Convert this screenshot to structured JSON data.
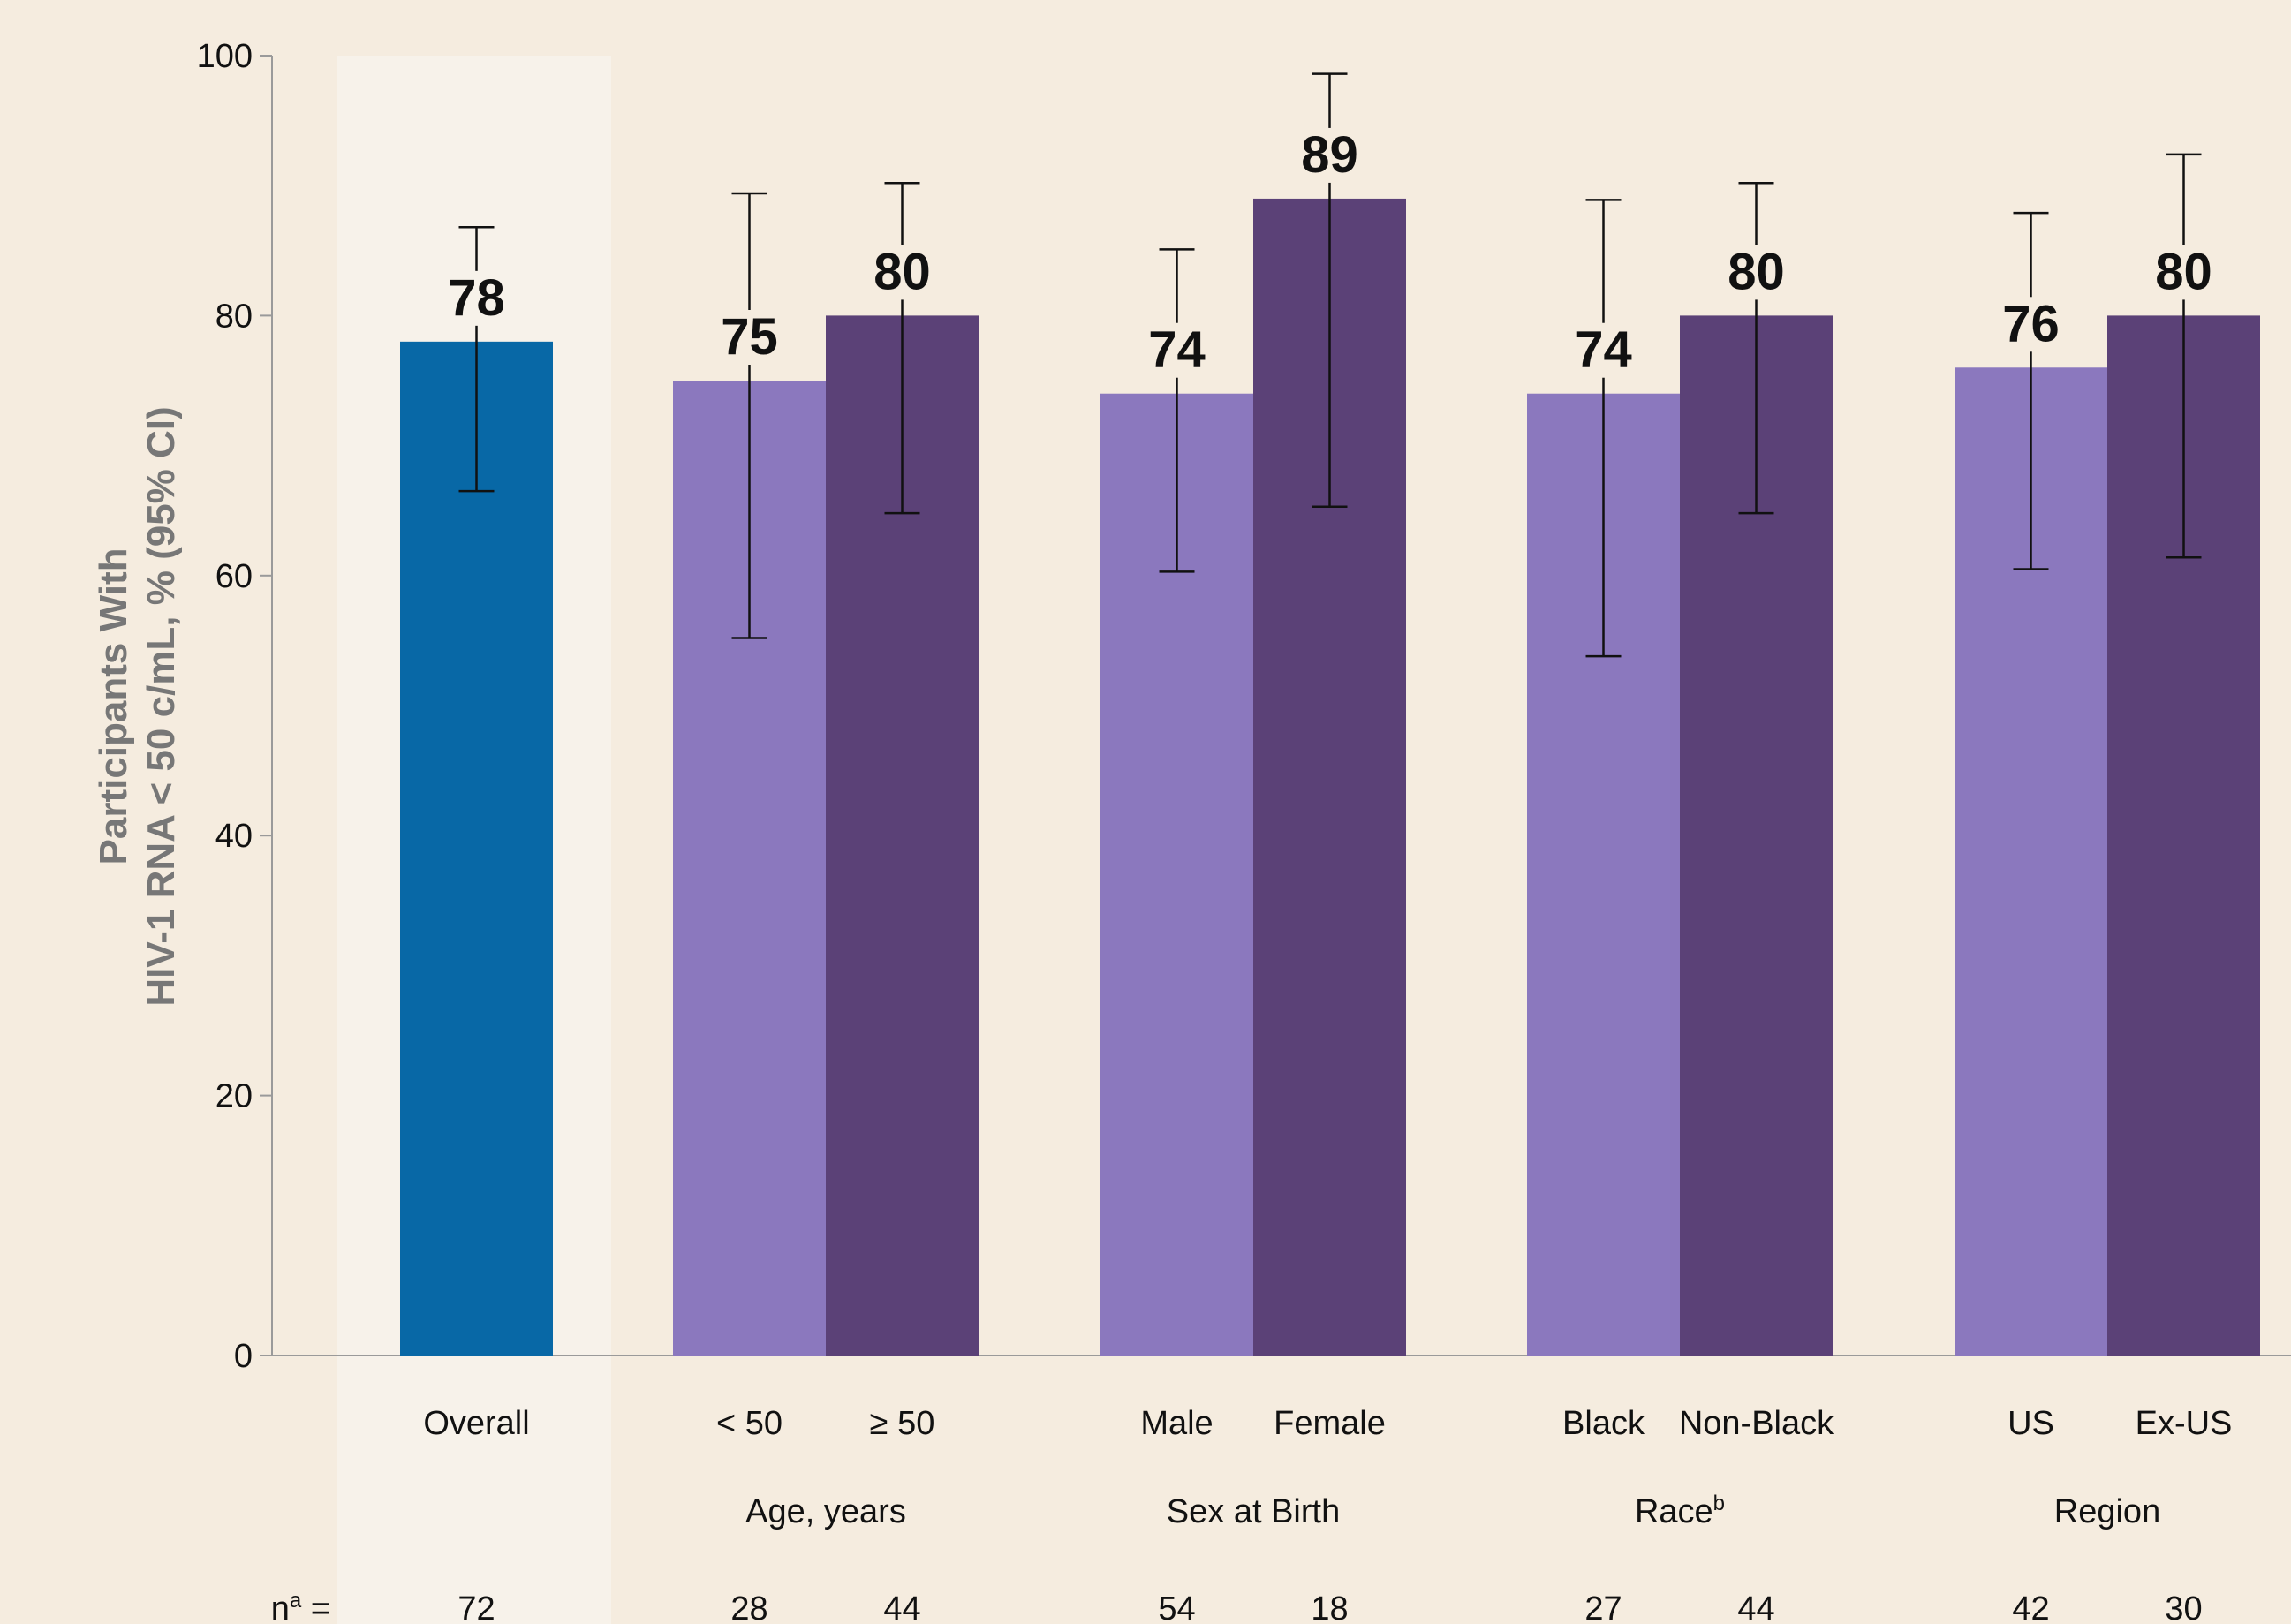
{
  "colors": {
    "background": "#f5ecdf",
    "highlight_panel": "#f7f2ea",
    "overall_bar": "#0868a6",
    "light_bar": "#8b78be",
    "dark_bar": "#5b4177",
    "axis": "#9a9a9a",
    "ylabel": "#777777"
  },
  "chart_data": {
    "type": "bar",
    "ylabel_line1": "Participants With",
    "ylabel_line2": "HIV-1 RNA < 50 c/mL, % (95% CI)",
    "ylim": [
      0,
      100
    ],
    "yticks": [
      0,
      20,
      40,
      60,
      80,
      100
    ],
    "n_label_base": "n",
    "n_label_sup": "a",
    "n_label_suffix": " =",
    "groups": [
      {
        "name": "",
        "name_sup": "",
        "bars": [
          {
            "category": "Overall",
            "value": 78,
            "ci_low": 66.5,
            "ci_high": 86.8,
            "n": "72",
            "tone": "overall"
          }
        ]
      },
      {
        "name": "Age, years",
        "name_sup": "",
        "bars": [
          {
            "category": "< 50",
            "value": 75,
            "ci_low": 55.2,
            "ci_high": 89.4,
            "n": "28",
            "tone": "light"
          },
          {
            "category": "≥ 50",
            "value": 80,
            "ci_low": 64.8,
            "ci_high": 90.2,
            "n": "44",
            "tone": "dark"
          }
        ]
      },
      {
        "name": "Sex at Birth",
        "name_sup": "",
        "bars": [
          {
            "category": "Male",
            "value": 74,
            "ci_low": 60.3,
            "ci_high": 85.1,
            "n": "54",
            "tone": "light"
          },
          {
            "category": "Female",
            "value": 89,
            "ci_low": 65.3,
            "ci_high": 98.6,
            "n": "18",
            "tone": "dark"
          }
        ]
      },
      {
        "name": "Race",
        "name_sup": "b",
        "bars": [
          {
            "category": "Black",
            "value": 74,
            "ci_low": 53.8,
            "ci_high": 88.9,
            "n": "27",
            "tone": "light"
          },
          {
            "category": "Non-Black",
            "value": 80,
            "ci_low": 64.8,
            "ci_high": 90.2,
            "n": "44",
            "tone": "dark"
          }
        ]
      },
      {
        "name": "Region",
        "name_sup": "",
        "bars": [
          {
            "category": "US",
            "value": 76,
            "ci_low": 60.5,
            "ci_high": 87.9,
            "n": "42",
            "tone": "light"
          },
          {
            "category": "Ex-US",
            "value": 80,
            "ci_low": 61.4,
            "ci_high": 92.4,
            "n": "30",
            "tone": "dark"
          }
        ]
      }
    ]
  }
}
